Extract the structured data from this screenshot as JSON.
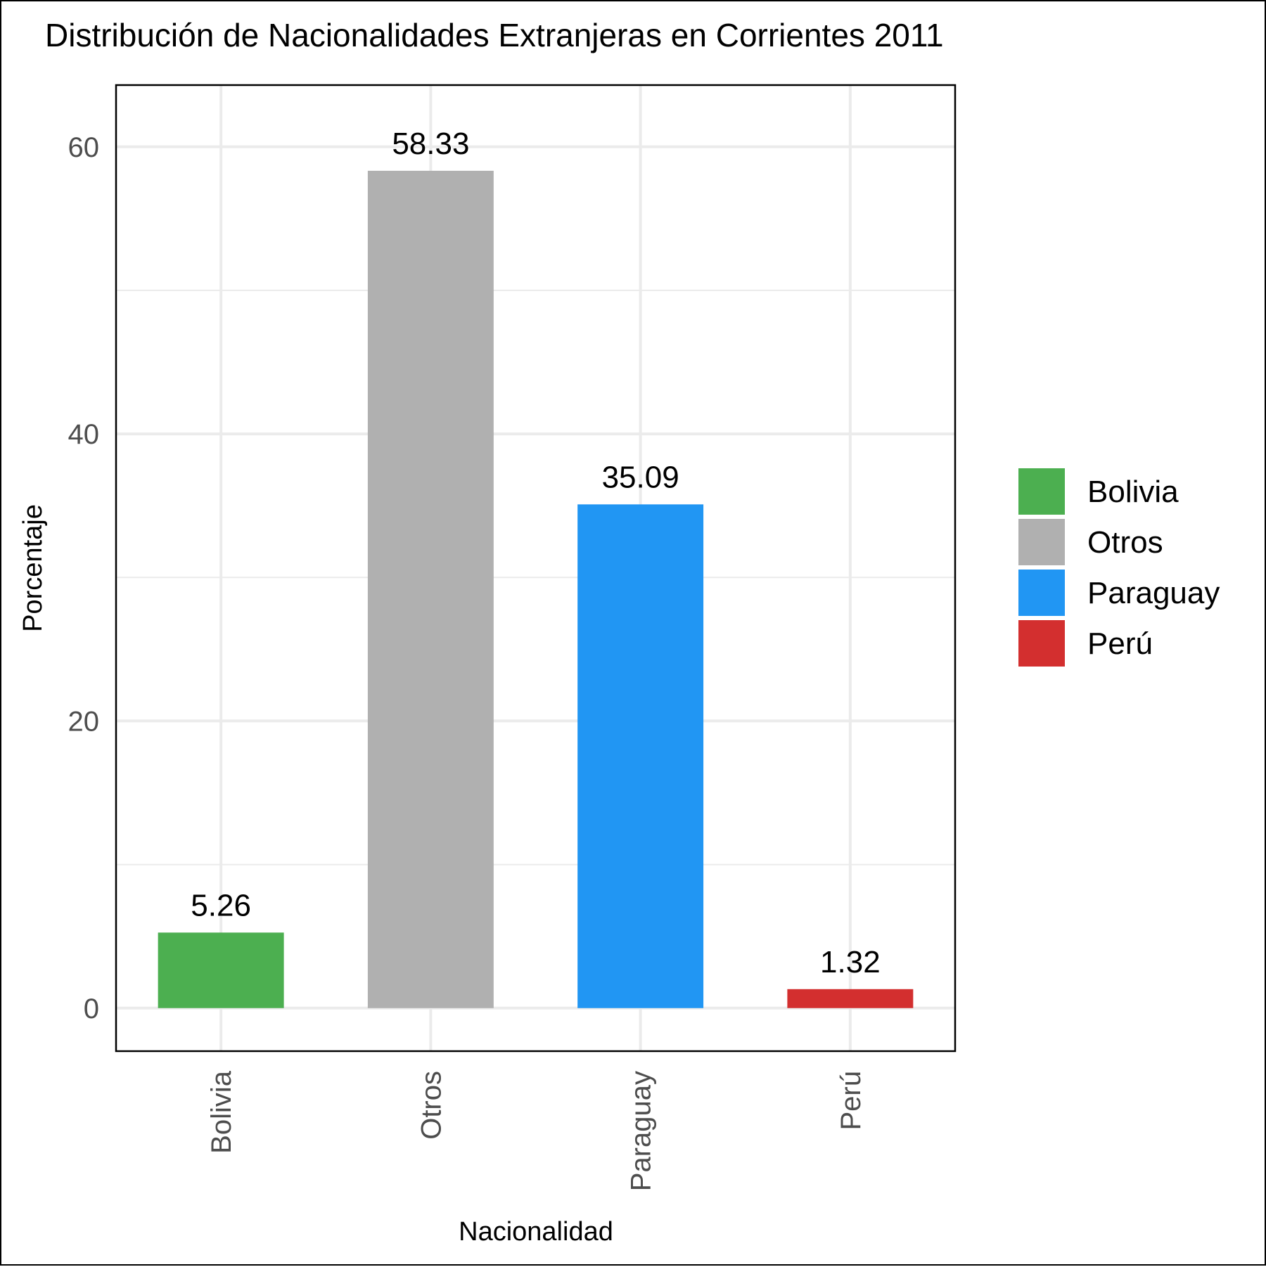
{
  "chart_data": {
    "type": "bar",
    "title": "Distribución de Nacionalidades Extranjeras en Corrientes 2011",
    "xlabel": "Nacionalidad",
    "ylabel": "Porcentaje",
    "categories": [
      "Bolivia",
      "Otros",
      "Paraguay",
      "Perú"
    ],
    "values": [
      5.26,
      58.33,
      35.09,
      1.32
    ],
    "value_labels": [
      "5.26",
      "58.33",
      "35.09",
      "1.32"
    ],
    "colors": [
      "#4caf50",
      "#b0b0b0",
      "#2196f3",
      "#d32f2f"
    ],
    "yticks": [
      0,
      20,
      40,
      60
    ],
    "ytick_labels": [
      "0",
      "20",
      "40",
      "60"
    ],
    "ylim": [
      -3,
      64.3
    ],
    "grid": true,
    "legend": {
      "position": "right",
      "entries": [
        "Bolivia",
        "Otros",
        "Paraguay",
        "Perú"
      ]
    }
  }
}
